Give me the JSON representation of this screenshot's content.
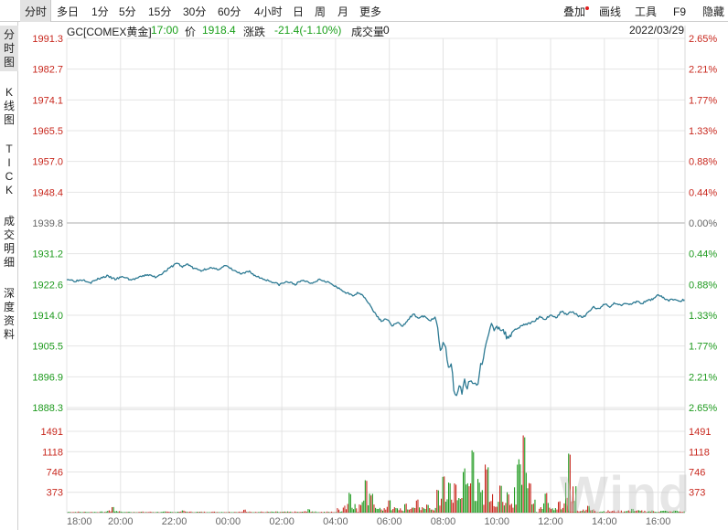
{
  "toolbar": {
    "periods": [
      "分时",
      "多日",
      "1分",
      "5分",
      "15分",
      "30分",
      "60分",
      "4小时",
      "日",
      "周",
      "月",
      "更多"
    ],
    "tools": [
      "叠加",
      "画线",
      "工具",
      "F9",
      "隐藏"
    ]
  },
  "sidebar": {
    "tabs": [
      {
        "label": [
          "分",
          "时",
          "图"
        ]
      },
      {
        "label": [
          "K",
          "线",
          "图"
        ]
      },
      {
        "label": [
          "T",
          "I",
          "C",
          "K"
        ]
      },
      {
        "label": [
          "成",
          "交",
          "明",
          "细"
        ]
      },
      {
        "label": [
          "深",
          "度",
          "资",
          "料"
        ]
      }
    ]
  },
  "info": {
    "symbol": "GC[COMEX黄金]",
    "time": "17:00",
    "price_label": "价",
    "price": "1918.4",
    "change_label": "涨跌",
    "change": "-21.4(-1.10%)",
    "volume_label": "成交量",
    "volume": "0",
    "date": "2022/03/29"
  },
  "watermark": "Wind",
  "colors": {
    "price_line": "#2d7a93",
    "up": "#c8281e",
    "down": "#1e9a1e",
    "grid": "#e4e4e4",
    "base": "#c8c8c8"
  },
  "chart_data": {
    "type": "line",
    "x_ticks": [
      "18:00",
      "20:00",
      "22:00",
      "00:00",
      "02:00",
      "04:00",
      "06:00",
      "08:00",
      "10:00",
      "12:00",
      "14:00",
      "16:00"
    ],
    "price_ticks": [
      "1991.3",
      "1982.7",
      "1974.1",
      "1965.5",
      "1957.0",
      "1948.4",
      "1939.8",
      "1931.2",
      "1922.6",
      "1914.0",
      "1905.5",
      "1896.9",
      "1888.3"
    ],
    "pct_ticks": [
      "2.65%",
      "2.21%",
      "1.77%",
      "1.33%",
      "0.88%",
      "0.44%",
      "0.00%",
      "0.44%",
      "0.88%",
      "1.33%",
      "1.77%",
      "2.21%",
      "2.65%"
    ],
    "volume_ticks": [
      "1491",
      "1118",
      "746",
      "373"
    ],
    "ylim": [
      1888.3,
      1991.3
    ],
    "prev_close": 1939.8,
    "volume_max": 1491,
    "x_range": [
      0,
      23
    ],
    "price": [
      [
        0.0,
        1924.2
      ],
      [
        0.3,
        1923.6
      ],
      [
        0.6,
        1924.0
      ],
      [
        0.9,
        1923.2
      ],
      [
        1.2,
        1924.3
      ],
      [
        1.5,
        1925.0
      ],
      [
        1.8,
        1924.1
      ],
      [
        2.1,
        1924.8
      ],
      [
        2.4,
        1923.9
      ],
      [
        2.7,
        1924.6
      ],
      [
        3.0,
        1925.4
      ],
      [
        3.3,
        1924.7
      ],
      [
        3.6,
        1926.0
      ],
      [
        3.9,
        1927.6
      ],
      [
        4.1,
        1928.7
      ],
      [
        4.3,
        1927.5
      ],
      [
        4.5,
        1928.4
      ],
      [
        4.7,
        1927.2
      ],
      [
        5.0,
        1926.5
      ],
      [
        5.3,
        1927.3
      ],
      [
        5.6,
        1926.8
      ],
      [
        5.9,
        1927.9
      ],
      [
        6.2,
        1926.6
      ],
      [
        6.5,
        1925.5
      ],
      [
        6.8,
        1926.3
      ],
      [
        7.0,
        1925.1
      ],
      [
        7.3,
        1924.2
      ],
      [
        7.6,
        1923.5
      ],
      [
        7.9,
        1922.6
      ],
      [
        8.2,
        1923.4
      ],
      [
        8.5,
        1922.7
      ],
      [
        8.8,
        1923.8
      ],
      [
        9.1,
        1923.0
      ],
      [
        9.4,
        1924.1
      ],
      [
        9.7,
        1923.4
      ],
      [
        10.0,
        1922.0
      ],
      [
        10.3,
        1920.7
      ],
      [
        10.6,
        1919.6
      ],
      [
        10.9,
        1920.4
      ],
      [
        11.1,
        1918.9
      ],
      [
        11.3,
        1916.6
      ],
      [
        11.5,
        1914.2
      ],
      [
        11.7,
        1912.4
      ],
      [
        11.9,
        1913.1
      ],
      [
        12.1,
        1911.1
      ],
      [
        12.3,
        1912.0
      ],
      [
        12.5,
        1910.9
      ],
      [
        12.7,
        1913.0
      ],
      [
        12.9,
        1914.3
      ],
      [
        13.1,
        1913.2
      ],
      [
        13.3,
        1913.9
      ],
      [
        13.5,
        1912.5
      ],
      [
        13.7,
        1913.3
      ],
      [
        13.8,
        1910.5
      ],
      [
        13.9,
        1903.8
      ],
      [
        14.0,
        1907.0
      ],
      [
        14.1,
        1905.2
      ],
      [
        14.2,
        1899.0
      ],
      [
        14.3,
        1901.1
      ],
      [
        14.4,
        1893.8
      ],
      [
        14.5,
        1891.6
      ],
      [
        14.6,
        1894.9
      ],
      [
        14.7,
        1892.2
      ],
      [
        14.8,
        1895.5
      ],
      [
        14.9,
        1893.4
      ],
      [
        15.0,
        1896.1
      ],
      [
        15.1,
        1894.3
      ],
      [
        15.2,
        1895.9
      ],
      [
        15.3,
        1894.7
      ],
      [
        15.4,
        1900.6
      ],
      [
        15.5,
        1901.5
      ],
      [
        15.6,
        1906.0
      ],
      [
        15.7,
        1908.4
      ],
      [
        15.8,
        1911.4
      ],
      [
        15.9,
        1910.4
      ],
      [
        16.0,
        1911.1
      ],
      [
        16.2,
        1910.2
      ],
      [
        16.4,
        1907.6
      ],
      [
        16.6,
        1909.7
      ],
      [
        16.8,
        1910.6
      ],
      [
        17.0,
        1911.5
      ],
      [
        17.2,
        1911.7
      ],
      [
        17.4,
        1912.5
      ],
      [
        17.6,
        1913.7
      ],
      [
        17.8,
        1912.9
      ],
      [
        18.0,
        1914.2
      ],
      [
        18.2,
        1913.3
      ],
      [
        18.4,
        1915.1
      ],
      [
        18.6,
        1914.4
      ],
      [
        18.8,
        1915.2
      ],
      [
        19.0,
        1914.0
      ],
      [
        19.2,
        1913.4
      ],
      [
        19.4,
        1914.8
      ],
      [
        19.6,
        1916.4
      ],
      [
        19.8,
        1915.7
      ],
      [
        20.0,
        1917.3
      ],
      [
        20.2,
        1916.5
      ],
      [
        20.4,
        1917.5
      ],
      [
        20.6,
        1916.8
      ],
      [
        20.8,
        1917.6
      ],
      [
        21.0,
        1917.0
      ],
      [
        21.2,
        1917.9
      ],
      [
        21.4,
        1917.3
      ],
      [
        21.6,
        1918.1
      ],
      [
        21.8,
        1918.6
      ],
      [
        22.0,
        1919.9
      ],
      [
        22.2,
        1918.8
      ],
      [
        22.4,
        1918.2
      ],
      [
        22.6,
        1918.5
      ],
      [
        22.8,
        1918.0
      ],
      [
        23.0,
        1918.4
      ]
    ],
    "volume_clusters": [
      {
        "from": 0.0,
        "to": 10.0,
        "base": 12,
        "peaks": [
          [
            1.7,
            110
          ],
          [
            4.3,
            42
          ],
          [
            6.6,
            58
          ],
          [
            9.0,
            65
          ]
        ]
      },
      {
        "from": 10.0,
        "to": 13.7,
        "base": 50,
        "peaks": [
          [
            10.5,
            390
          ],
          [
            11.1,
            600
          ],
          [
            11.3,
            350
          ],
          [
            12.0,
            240
          ],
          [
            12.6,
            170
          ],
          [
            13.0,
            260
          ],
          [
            13.4,
            150
          ]
        ]
      },
      {
        "from": 13.7,
        "to": 16.6,
        "base": 110,
        "peaks": [
          [
            13.8,
            480
          ],
          [
            14.0,
            760
          ],
          [
            14.2,
            560
          ],
          [
            14.45,
            580
          ],
          [
            14.75,
            870
          ],
          [
            14.9,
            540
          ],
          [
            15.1,
            1180
          ],
          [
            15.3,
            620
          ],
          [
            15.6,
            930
          ],
          [
            16.1,
            500
          ],
          [
            16.4,
            380
          ]
        ]
      },
      {
        "from": 16.6,
        "to": 23.0,
        "base": 25,
        "peaks": [
          [
            16.8,
            980
          ],
          [
            17.0,
            1470
          ],
          [
            17.2,
            610
          ],
          [
            17.8,
            380
          ],
          [
            18.3,
            210
          ],
          [
            18.7,
            1118
          ],
          [
            19.4,
            140
          ],
          [
            21.0,
            70
          ],
          [
            22.6,
            40
          ]
        ]
      }
    ]
  }
}
